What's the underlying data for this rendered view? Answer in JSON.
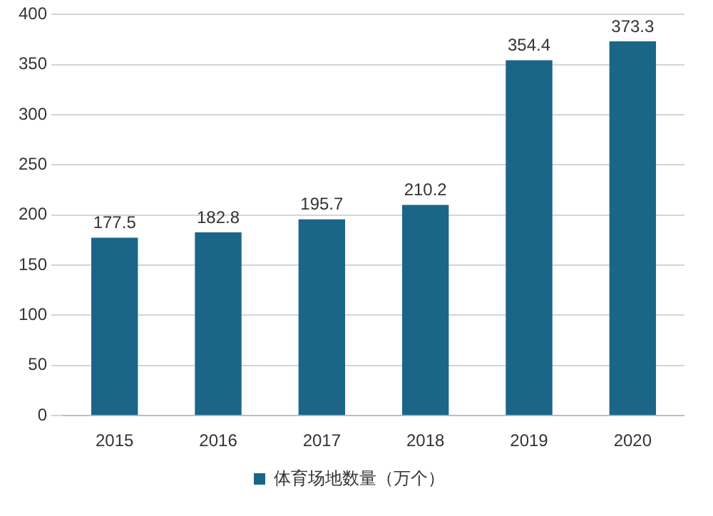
{
  "chart_data": {
    "type": "bar",
    "categories": [
      "2015",
      "2016",
      "2017",
      "2018",
      "2019",
      "2020"
    ],
    "series": [
      {
        "name": "体育场地数量（万个）",
        "color": "#1b6688",
        "values": [
          177.5,
          182.8,
          195.7,
          210.2,
          354.4,
          373.3
        ]
      }
    ],
    "ylim": [
      0,
      400
    ],
    "yticks": [
      0,
      50,
      100,
      150,
      200,
      250,
      300,
      350,
      400
    ],
    "grid": "y",
    "legend": "bottom",
    "data_labels": true
  }
}
